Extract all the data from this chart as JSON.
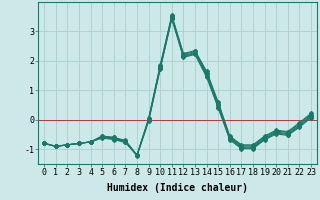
{
  "xlabel": "Humidex (Indice chaleur)",
  "x": [
    0,
    1,
    2,
    3,
    4,
    5,
    6,
    7,
    8,
    9,
    10,
    11,
    12,
    13,
    14,
    15,
    16,
    17,
    18,
    19,
    20,
    21,
    22,
    23
  ],
  "series": [
    [
      -0.8,
      -0.9,
      -0.85,
      -0.8,
      -0.75,
      -0.55,
      -0.6,
      -0.7,
      -1.2,
      0.05,
      1.85,
      3.55,
      2.25,
      2.35,
      1.65,
      0.6,
      -0.55,
      -0.85,
      -0.85,
      -0.55,
      -0.35,
      -0.4,
      -0.1,
      0.22
    ],
    [
      -0.8,
      -0.9,
      -0.85,
      -0.8,
      -0.75,
      -0.55,
      -0.6,
      -0.72,
      -1.2,
      0.02,
      1.82,
      3.52,
      2.22,
      2.32,
      1.6,
      0.55,
      -0.58,
      -0.88,
      -0.88,
      -0.58,
      -0.38,
      -0.43,
      -0.13,
      0.18
    ],
    [
      -0.8,
      -0.9,
      -0.85,
      -0.8,
      -0.75,
      -0.58,
      -0.62,
      -0.73,
      -1.2,
      0.0,
      1.78,
      3.48,
      2.18,
      2.28,
      1.55,
      0.5,
      -0.62,
      -0.92,
      -0.92,
      -0.62,
      -0.42,
      -0.47,
      -0.18,
      0.14
    ],
    [
      -0.8,
      -0.9,
      -0.85,
      -0.8,
      -0.75,
      -0.6,
      -0.65,
      -0.75,
      -1.2,
      -0.02,
      1.75,
      3.45,
      2.15,
      2.25,
      1.5,
      0.45,
      -0.65,
      -0.95,
      -0.95,
      -0.65,
      -0.45,
      -0.5,
      -0.22,
      0.1
    ],
    [
      -0.8,
      -0.9,
      -0.85,
      -0.8,
      -0.75,
      -0.62,
      -0.67,
      -0.77,
      -1.22,
      -0.05,
      1.72,
      3.42,
      2.12,
      2.22,
      1.45,
      0.4,
      -0.68,
      -0.98,
      -0.98,
      -0.68,
      -0.48,
      -0.53,
      -0.25,
      0.07
    ]
  ],
  "bg_color": "#cce8e8",
  "grid_color": "#aacece",
  "line_color": "#1a7a6a",
  "red_line_color": "#cc3333",
  "marker": "D",
  "marker_size": 2,
  "linewidth": 0.8,
  "ylim": [
    -1.5,
    4.0
  ],
  "xlim": [
    -0.5,
    23.5
  ],
  "yticks": [
    -1,
    0,
    1,
    2,
    3
  ],
  "xticks": [
    0,
    1,
    2,
    3,
    4,
    5,
    6,
    7,
    8,
    9,
    10,
    11,
    12,
    13,
    14,
    15,
    16,
    17,
    18,
    19,
    20,
    21,
    22,
    23
  ],
  "tick_fontsize": 6,
  "label_fontsize": 7
}
